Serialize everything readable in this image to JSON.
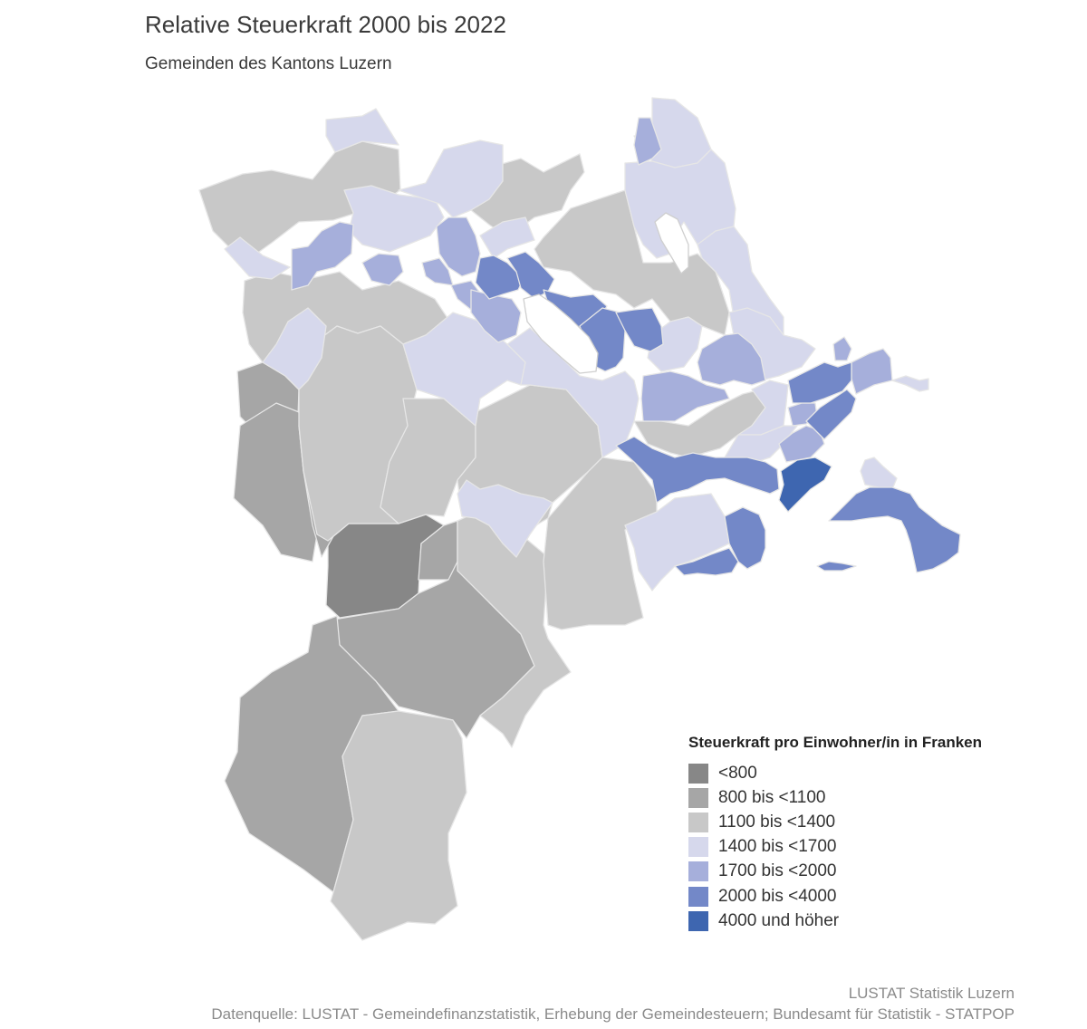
{
  "title": "Relative Steuerkraft 2000 bis 2022",
  "subtitle": "Gemeinden des Kantons Luzern",
  "legend": {
    "title": "Steuerkraft pro Einwohner/in in Franken",
    "classes": [
      {
        "label": "<800",
        "color": "#878787"
      },
      {
        "label": "800 bis <1100",
        "color": "#a6a6a6"
      },
      {
        "label": "1100 bis <1400",
        "color": "#c8c8c8"
      },
      {
        "label": "1400 bis <1700",
        "color": "#d6d8ec"
      },
      {
        "label": "1700 bis <2000",
        "color": "#a6afdb"
      },
      {
        "label": "2000 bis <4000",
        "color": "#7388c8"
      },
      {
        "label": "4000 und höher",
        "color": "#3e66b0"
      }
    ]
  },
  "source": {
    "publisher": "LUSTAT Statistik Luzern",
    "data_source": "Datenquelle: LUSTAT - Gemeindefinanzstatistik, Erhebung der Gemeindesteuern; Bundesamt für Statistik - STATPOP"
  }
}
